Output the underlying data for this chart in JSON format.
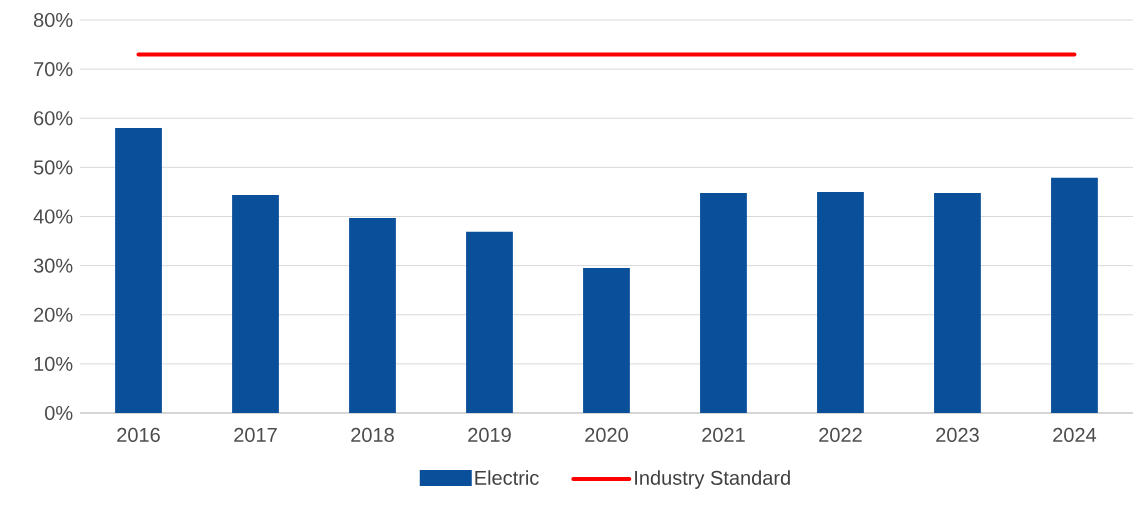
{
  "chart_data": {
    "type": "bar",
    "categories": [
      "2016",
      "2017",
      "2018",
      "2019",
      "2020",
      "2021",
      "2022",
      "2023",
      "2024"
    ],
    "series": [
      {
        "name": "Electric",
        "color": "#0a4f99",
        "values": [
          58.0,
          44.4,
          39.7,
          36.9,
          29.5,
          44.8,
          45.0,
          44.8,
          47.9
        ]
      },
      {
        "name": "Industry Standard",
        "type": "line",
        "color": "#ff0000",
        "values": [
          73,
          73,
          73,
          73,
          73,
          73,
          73,
          73,
          73
        ]
      }
    ],
    "ylim": [
      0,
      80
    ],
    "yticks": [
      {
        "value": 0,
        "label": "0%"
      },
      {
        "value": 10,
        "label": "10%"
      },
      {
        "value": 20,
        "label": "20%"
      },
      {
        "value": 30,
        "label": "30%"
      },
      {
        "value": 40,
        "label": "40%"
      },
      {
        "value": 50,
        "label": "50%"
      },
      {
        "value": 60,
        "label": "60%"
      },
      {
        "value": 70,
        "label": "70%"
      },
      {
        "value": 80,
        "label": "80%"
      }
    ],
    "grid": "y",
    "legend": "bottom",
    "marker": "none"
  }
}
